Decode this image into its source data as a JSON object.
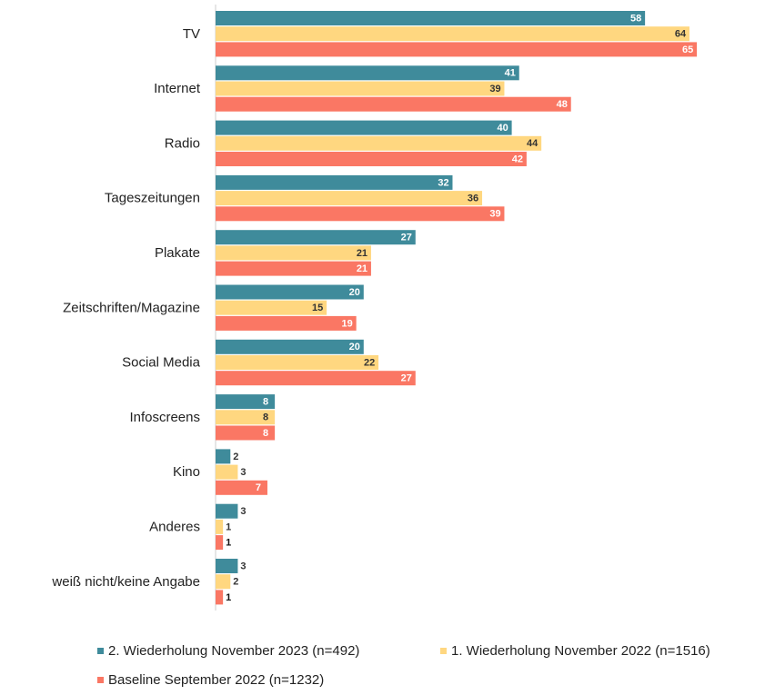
{
  "chart_data": {
    "type": "bar",
    "orientation": "horizontal",
    "categories": [
      "TV",
      "Internet",
      "Radio",
      "Tageszeitungen",
      "Plakate",
      "Zeitschriften/Magazine",
      "Social Media",
      "Infoscreens",
      "Kino",
      "Anderes",
      "weiß nicht/keine Angabe"
    ],
    "series": [
      {
        "name": "2. Wiederholung November 2023 (n=492)",
        "color": "#3f8b9b",
        "values": [
          58,
          41,
          40,
          32,
          27,
          20,
          20,
          8,
          2,
          3,
          3
        ]
      },
      {
        "name": "1. Wiederholung November 2022 (n=1516)",
        "color": "#ffd780",
        "values": [
          64,
          39,
          44,
          36,
          21,
          15,
          22,
          8,
          3,
          1,
          2
        ]
      },
      {
        "name": "Baseline September 2022 (n=1232)",
        "color": "#fa7764",
        "values": [
          65,
          48,
          42,
          39,
          21,
          19,
          27,
          8,
          7,
          1,
          1
        ]
      }
    ],
    "legend": "bottom"
  }
}
